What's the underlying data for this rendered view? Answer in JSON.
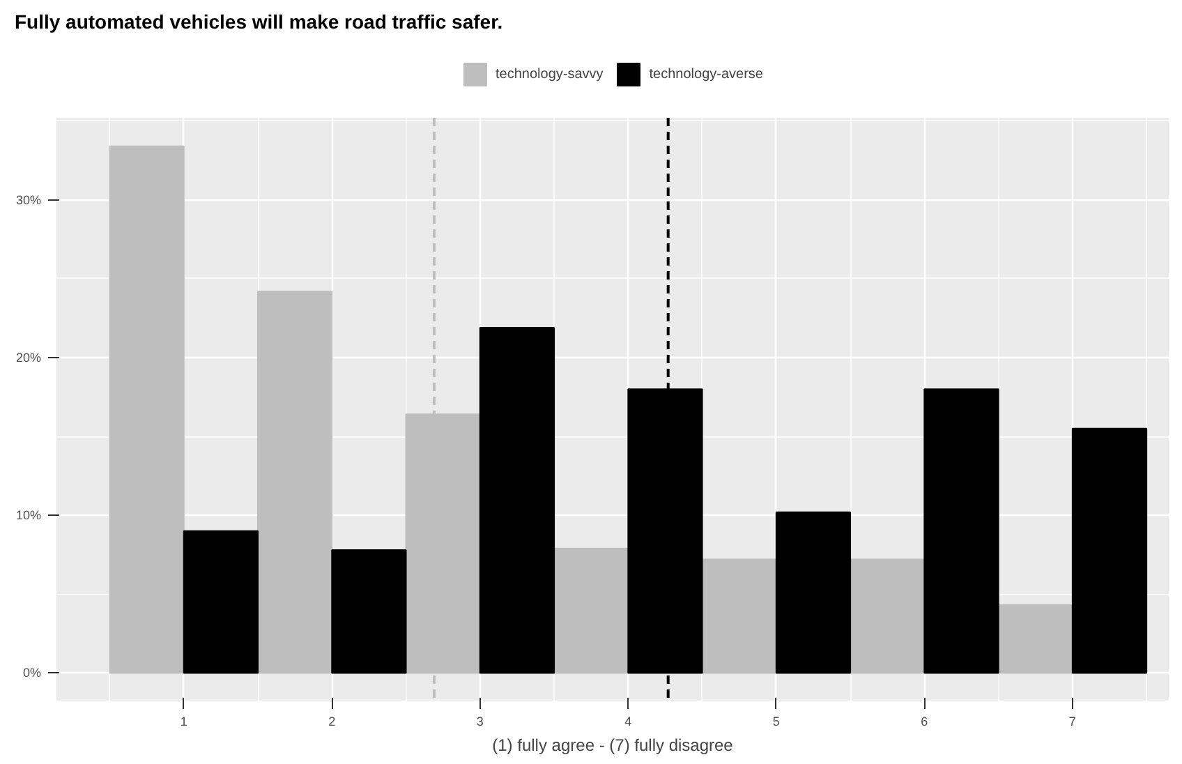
{
  "chart_data": {
    "type": "bar",
    "title": "Fully automated vehicles will make road traffic safer.",
    "xlabel": "(1) fully agree - (7) fully disagree",
    "x": [
      1,
      2,
      3,
      4,
      5,
      6,
      7
    ],
    "series": [
      {
        "name": "technology-savvy",
        "color": "#bebebe",
        "values": [
          33.4,
          24.2,
          16.4,
          7.9,
          7.2,
          7.2,
          4.3
        ]
      },
      {
        "name": "technology-averse",
        "color": "#000000",
        "values": [
          9.0,
          7.8,
          21.9,
          18.0,
          10.2,
          18.0,
          15.5
        ]
      }
    ],
    "xlim": [
      0.14,
      7.65
    ],
    "xticks": [
      1,
      2,
      3,
      4,
      5,
      6,
      7
    ],
    "ylim": [
      -1.75,
      35.2
    ],
    "yticks": [
      {
        "value": 0,
        "label": "0%"
      },
      {
        "value": 10,
        "label": "10%"
      },
      {
        "value": 20,
        "label": "20%"
      },
      {
        "value": 30,
        "label": "30%"
      }
    ],
    "ref_lines": [
      {
        "axis": "x",
        "value": 2.69,
        "color": "#bebebe",
        "line_style": "dashed"
      },
      {
        "axis": "x",
        "value": 4.27,
        "color": "#000000",
        "line_style": "dashed"
      }
    ],
    "grid": true,
    "legend": "top"
  }
}
